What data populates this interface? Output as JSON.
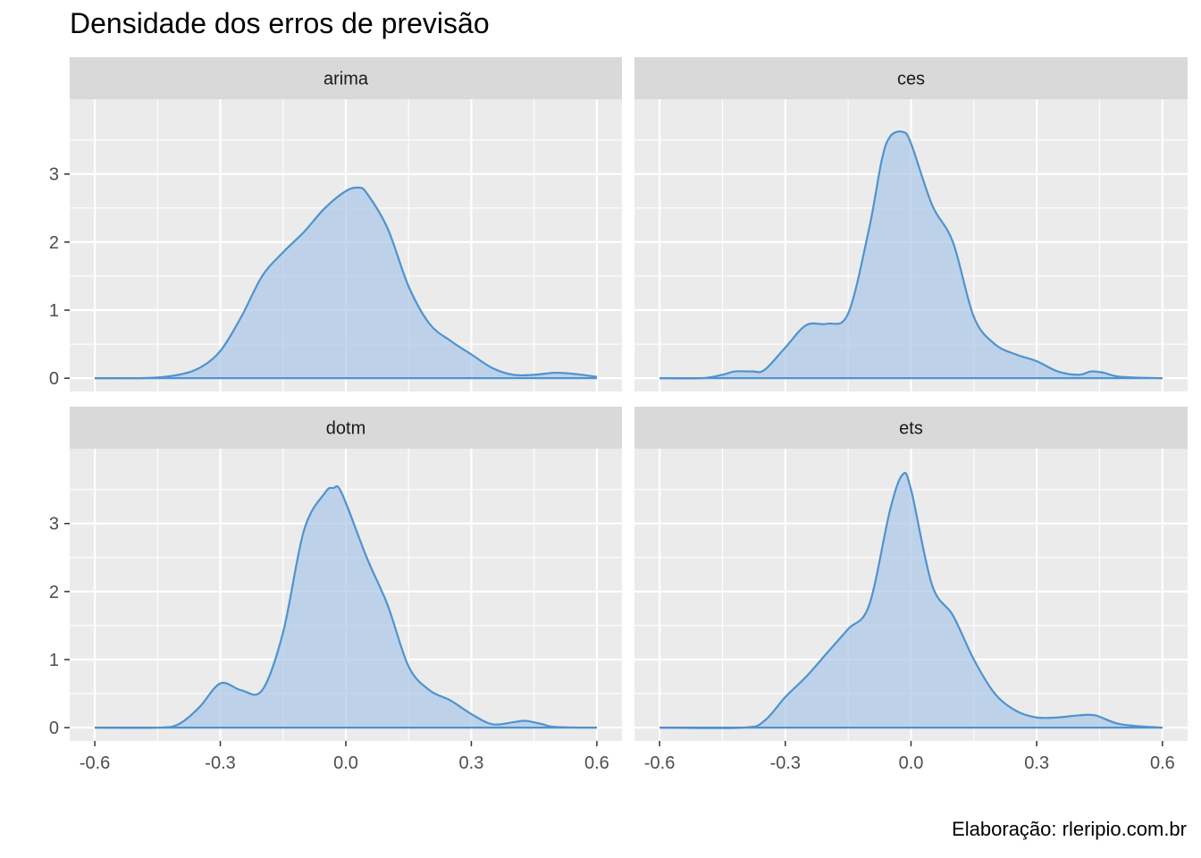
{
  "chart_data": {
    "type": "area",
    "title": "Densidade dos erros de previsão",
    "caption": "Elaboração: rleripio.com.br",
    "xlabel": "",
    "ylabel": "",
    "xlim": [
      -0.6,
      0.6
    ],
    "ylim": [
      0,
      3.9
    ],
    "x_ticks": [
      -0.6,
      -0.3,
      0.0,
      0.3,
      0.6
    ],
    "x_tick_labels": [
      "-0.6",
      "-0.3",
      "0.0",
      "0.3",
      "0.6"
    ],
    "y_ticks": [
      0,
      1,
      2,
      3
    ],
    "y_tick_labels": [
      "0",
      "1",
      "2",
      "3"
    ],
    "grid": true,
    "colors": {
      "line": "#4f93cf",
      "fill": "#a9c8e8",
      "panel": "#ebebeb",
      "strip": "#d9d9d9",
      "grid": "#ffffff"
    },
    "panels": [
      {
        "name": "arima",
        "x": [
          -0.6,
          -0.5,
          -0.45,
          -0.4,
          -0.35,
          -0.3,
          -0.25,
          -0.2,
          -0.15,
          -0.1,
          -0.05,
          0.0,
          0.03,
          0.05,
          0.1,
          0.15,
          0.2,
          0.25,
          0.3,
          0.35,
          0.4,
          0.45,
          0.5,
          0.55,
          0.6
        ],
        "y": [
          0.0,
          0.0,
          0.01,
          0.05,
          0.15,
          0.4,
          0.9,
          1.5,
          1.85,
          2.15,
          2.5,
          2.75,
          2.8,
          2.72,
          2.2,
          1.35,
          0.8,
          0.55,
          0.35,
          0.15,
          0.05,
          0.05,
          0.08,
          0.06,
          0.02
        ]
      },
      {
        "name": "ces",
        "x": [
          -0.6,
          -0.5,
          -0.45,
          -0.42,
          -0.38,
          -0.35,
          -0.3,
          -0.25,
          -0.2,
          -0.15,
          -0.1,
          -0.07,
          -0.05,
          -0.02,
          0.0,
          0.05,
          0.1,
          0.15,
          0.2,
          0.25,
          0.3,
          0.35,
          0.4,
          0.43,
          0.46,
          0.5,
          0.6
        ],
        "y": [
          0.0,
          0.0,
          0.05,
          0.1,
          0.1,
          0.12,
          0.45,
          0.78,
          0.8,
          0.95,
          2.2,
          3.2,
          3.55,
          3.62,
          3.45,
          2.55,
          2.0,
          0.9,
          0.5,
          0.35,
          0.25,
          0.1,
          0.05,
          0.1,
          0.08,
          0.02,
          0.0
        ]
      },
      {
        "name": "dotm",
        "x": [
          -0.6,
          -0.45,
          -0.4,
          -0.35,
          -0.3,
          -0.25,
          -0.2,
          -0.15,
          -0.1,
          -0.05,
          -0.03,
          -0.01,
          0.05,
          0.1,
          0.15,
          0.2,
          0.25,
          0.3,
          0.35,
          0.4,
          0.43,
          0.47,
          0.5,
          0.6
        ],
        "y": [
          0.0,
          0.0,
          0.05,
          0.3,
          0.65,
          0.55,
          0.55,
          1.4,
          2.9,
          3.45,
          3.52,
          3.45,
          2.5,
          1.8,
          0.9,
          0.55,
          0.4,
          0.2,
          0.05,
          0.08,
          0.1,
          0.05,
          0.01,
          0.0
        ]
      },
      {
        "name": "ets",
        "x": [
          -0.6,
          -0.4,
          -0.35,
          -0.3,
          -0.25,
          -0.2,
          -0.15,
          -0.1,
          -0.05,
          -0.02,
          0.0,
          0.05,
          0.1,
          0.15,
          0.2,
          0.25,
          0.3,
          0.35,
          0.4,
          0.44,
          0.5,
          0.6
        ],
        "y": [
          0.0,
          0.0,
          0.1,
          0.45,
          0.75,
          1.1,
          1.45,
          1.8,
          3.2,
          3.72,
          3.5,
          2.1,
          1.65,
          1.0,
          0.5,
          0.25,
          0.15,
          0.15,
          0.18,
          0.18,
          0.05,
          0.0
        ]
      }
    ]
  }
}
